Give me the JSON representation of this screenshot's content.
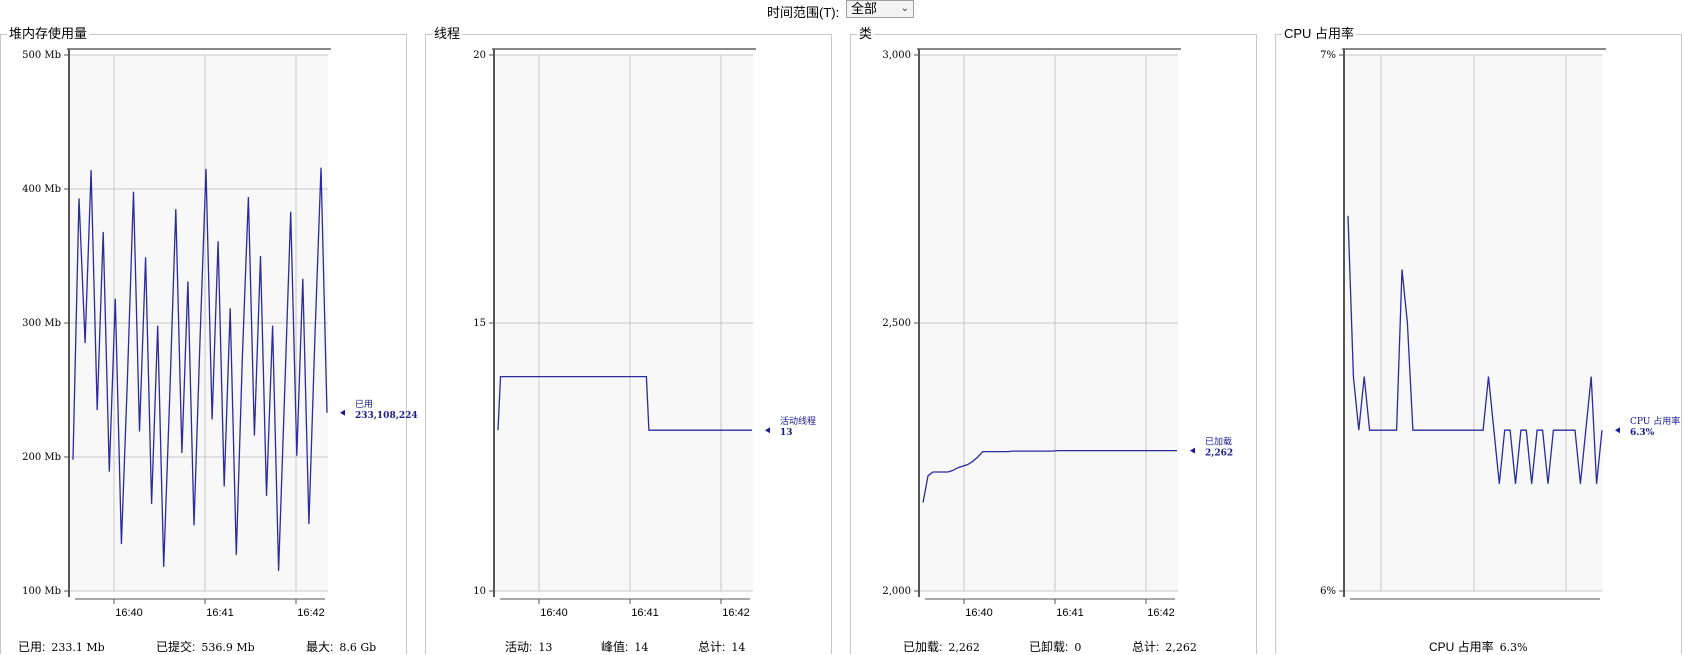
{
  "time_range": {
    "label": "时间范围(T):",
    "value": "全部"
  },
  "panels": [
    {
      "title": "堆内存使用量",
      "y_ticks": [
        "500 Mb",
        "400 Mb",
        "300 Mb",
        "200 Mb",
        "100 Mb"
      ],
      "x_ticks": [
        "16:40",
        "16:41",
        "16:42"
      ],
      "marker": {
        "label": "已用",
        "value": "233,108,224"
      },
      "footer": [
        {
          "label": "已用:",
          "value": "233.1 Mb"
        },
        {
          "label": "已提交:",
          "value": "536.9 Mb"
        },
        {
          "label": "最大:",
          "value": "8.6 Gb"
        }
      ]
    },
    {
      "title": "线程",
      "y_ticks": [
        "20",
        "15",
        "10"
      ],
      "x_ticks": [
        "16:40",
        "16:41",
        "16:42"
      ],
      "marker": {
        "label": "活动线程",
        "value": "13"
      },
      "footer": [
        {
          "label": "活动:",
          "value": "13"
        },
        {
          "label": "峰值:",
          "value": "14"
        },
        {
          "label": "总计:",
          "value": "14"
        }
      ]
    },
    {
      "title": "类",
      "y_ticks": [
        "3,000",
        "2,500",
        "2,000"
      ],
      "x_ticks": [
        "16:40",
        "16:41",
        "16:42"
      ],
      "marker": {
        "label": "已加载",
        "value": "2,262"
      },
      "footer": [
        {
          "label": "已加载:",
          "value": "2,262"
        },
        {
          "label": "已卸载:",
          "value": "0"
        },
        {
          "label": "总计:",
          "value": "2,262"
        }
      ]
    },
    {
      "title": "CPU 占用率",
      "y_ticks": [
        "7%",
        "6%"
      ],
      "x_ticks": [],
      "marker": {
        "label": "CPU 占用率",
        "value": "6.3%"
      },
      "footer": [
        {
          "label": "CPU 占用率",
          "value": "6.3%"
        }
      ]
    }
  ],
  "chart_data": [
    {
      "type": "line",
      "title": "堆内存使用量",
      "ylim": [
        100,
        500
      ],
      "y_unit": "Mb",
      "x_ticks": [
        "16:40",
        "16:41",
        "16:42"
      ],
      "series": [
        {
          "name": "已用",
          "color": "#2b2b9c",
          "values": [
            198,
            393,
            285,
            414,
            235,
            368,
            189,
            318,
            135,
            258,
            398,
            219,
            349,
            165,
            298,
            118,
            247,
            385,
            203,
            331,
            149,
            287,
            415,
            228,
            361,
            178,
            311,
            127,
            273,
            394,
            216,
            350,
            171,
            298,
            115,
            249,
            383,
            201,
            333,
            150,
            289,
            416,
            233
          ]
        }
      ],
      "grid": true
    },
    {
      "type": "line",
      "title": "线程",
      "ylim": [
        10,
        20
      ],
      "x_ticks": [
        "16:40",
        "16:41",
        "16:42"
      ],
      "series": [
        {
          "name": "活动线程",
          "color": "#2b2b9c",
          "values": [
            13,
            14,
            14,
            14,
            14,
            14,
            14,
            14,
            14,
            14,
            14,
            14,
            14,
            14,
            14,
            14,
            14,
            14,
            14,
            14,
            14,
            14,
            14,
            14,
            14,
            14,
            14,
            14,
            14,
            14,
            14,
            14,
            14,
            14,
            14,
            14,
            14,
            14,
            14,
            14,
            14,
            14,
            14,
            14,
            14,
            14,
            14,
            14,
            14,
            14,
            14,
            14,
            14,
            14,
            14,
            14,
            14,
            14,
            14,
            14,
            13,
            13,
            13,
            13,
            13,
            13,
            13,
            13,
            13,
            13,
            13,
            13,
            13,
            13,
            13,
            13,
            13,
            13,
            13,
            13,
            13,
            13,
            13,
            13,
            13,
            13,
            13,
            13,
            13,
            13,
            13,
            13,
            13,
            13,
            13,
            13,
            13,
            13,
            13,
            13,
            13,
            13
          ]
        }
      ],
      "grid": true
    },
    {
      "type": "line",
      "title": "类",
      "ylim": [
        2000,
        3000
      ],
      "x_ticks": [
        "16:40",
        "16:41",
        "16:42"
      ],
      "series": [
        {
          "name": "已加载",
          "color": "#2b2b9c",
          "values": [
            2165,
            2215,
            2222,
            2222,
            2222,
            2222,
            2225,
            2230,
            2233,
            2236,
            2242,
            2250,
            2260,
            2260,
            2260,
            2260,
            2260,
            2260,
            2261,
            2261,
            2261,
            2261,
            2261,
            2261,
            2261,
            2261,
            2261,
            2262,
            2262,
            2262,
            2262,
            2262,
            2262,
            2262,
            2262,
            2262,
            2262,
            2262,
            2262,
            2262,
            2262,
            2262,
            2262,
            2262,
            2262,
            2262,
            2262,
            2262,
            2262,
            2262,
            2262,
            2262
          ]
        }
      ],
      "grid": true
    },
    {
      "type": "line",
      "title": "CPU 占用率",
      "ylim": [
        6,
        7
      ],
      "y_unit": "%",
      "series": [
        {
          "name": "CPU 占用率",
          "color": "#2b2b9c",
          "values": [
            6.7,
            6.4,
            6.3,
            6.4,
            6.3,
            6.3,
            6.3,
            6.3,
            6.3,
            6.3,
            6.6,
            6.5,
            6.3,
            6.3,
            6.3,
            6.3,
            6.3,
            6.3,
            6.3,
            6.3,
            6.3,
            6.3,
            6.3,
            6.3,
            6.3,
            6.3,
            6.4,
            6.3,
            6.2,
            6.3,
            6.3,
            6.2,
            6.3,
            6.3,
            6.2,
            6.3,
            6.3,
            6.2,
            6.3,
            6.3,
            6.3,
            6.3,
            6.3,
            6.2,
            6.3,
            6.4,
            6.2,
            6.3
          ]
        }
      ],
      "grid": true
    }
  ]
}
